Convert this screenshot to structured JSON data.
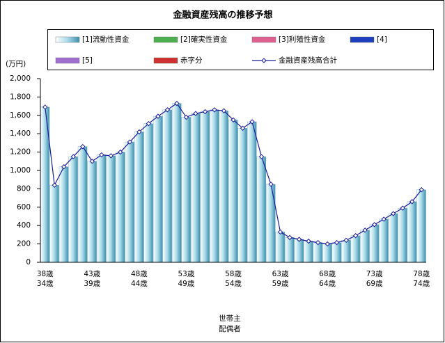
{
  "chart_data": {
    "type": "bar-line",
    "title": "金融資産残高の推移予想",
    "y_axis_label": "(万円)",
    "x_axis_label": [
      "世帯主",
      "配偶者"
    ],
    "categories": [
      "38歳",
      null,
      null,
      null,
      null,
      "43歳",
      null,
      null,
      null,
      null,
      "48歳",
      null,
      null,
      null,
      null,
      "53歳",
      null,
      null,
      null,
      null,
      "58歳",
      null,
      null,
      null,
      null,
      "63歳",
      null,
      null,
      null,
      null,
      "68歳",
      null,
      null,
      null,
      null,
      "73歳",
      null,
      null,
      null,
      null,
      "78歳"
    ],
    "categories_spouse": [
      "34歳",
      null,
      null,
      null,
      null,
      "39歳",
      null,
      null,
      null,
      null,
      "44歳",
      null,
      null,
      null,
      null,
      "49歳",
      null,
      null,
      null,
      null,
      "54歳",
      null,
      null,
      null,
      null,
      "59歳",
      null,
      null,
      null,
      null,
      "64歳",
      null,
      null,
      null,
      null,
      "69歳",
      null,
      null,
      null,
      null,
      "74歳"
    ],
    "series": [
      {
        "name": "[1]流動性資金",
        "color": "#9fd3e3",
        "kind": "bar",
        "values": [
          1690,
          840,
          1040,
          1150,
          1260,
          1100,
          1170,
          1160,
          1200,
          1310,
          1420,
          1510,
          1590,
          1660,
          1730,
          1580,
          1620,
          1640,
          1660,
          1650,
          1550,
          1460,
          1530,
          1150,
          850,
          330,
          270,
          250,
          230,
          215,
          200,
          215,
          240,
          290,
          350,
          410,
          470,
          530,
          590,
          660,
          790
        ]
      },
      {
        "name": "[2]確実性資金",
        "color": "#4caf50",
        "kind": "bar"
      },
      {
        "name": "[3]利殖性資金",
        "color": "#e06090",
        "kind": "bar"
      },
      {
        "name": "[4]",
        "color": "#1f3fbf",
        "kind": "bar"
      },
      {
        "name": "[5]",
        "color": "#a070d0",
        "kind": "bar"
      },
      {
        "name": "赤字分",
        "color": "#d03030",
        "kind": "bar"
      },
      {
        "name": "金融資産残高合計",
        "color": "#1a1a9a",
        "kind": "line",
        "values": [
          1690,
          840,
          1040,
          1150,
          1260,
          1100,
          1170,
          1160,
          1200,
          1310,
          1420,
          1510,
          1590,
          1660,
          1730,
          1580,
          1620,
          1640,
          1660,
          1650,
          1550,
          1460,
          1530,
          1150,
          850,
          330,
          270,
          250,
          230,
          215,
          200,
          215,
          240,
          290,
          350,
          410,
          470,
          530,
          590,
          660,
          790
        ]
      }
    ],
    "ylim": [
      0,
      2000
    ],
    "yticks": [
      0,
      200,
      400,
      600,
      800,
      {
        "value": 1000,
        "label": "1,000"
      },
      {
        "value": 1200,
        "label": "1,200"
      },
      {
        "value": 1400,
        "label": "1,400"
      },
      {
        "value": 1600,
        "label": "1,600"
      },
      {
        "value": 1800,
        "label": "1,800"
      },
      {
        "value": 2000,
        "label": "2,000"
      }
    ]
  }
}
